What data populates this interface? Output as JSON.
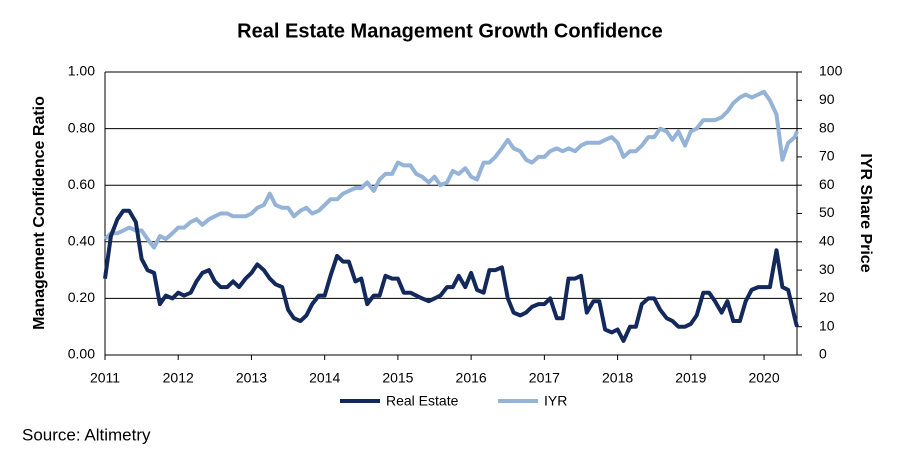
{
  "chart_data": {
    "type": "line",
    "title": "Real Estate Management Growth Confidence",
    "ylabel": "Management Confidence Ratio",
    "y2label": "IYR Share Price",
    "source": "Source: Altimetry",
    "legend": "bottom",
    "grid": true,
    "x": [
      2011.0,
      2011.08,
      2011.17,
      2011.25,
      2011.33,
      2011.42,
      2011.5,
      2011.58,
      2011.67,
      2011.75,
      2011.83,
      2011.92,
      2012.0,
      2012.08,
      2012.17,
      2012.25,
      2012.33,
      2012.42,
      2012.5,
      2012.58,
      2012.67,
      2012.75,
      2012.83,
      2012.92,
      2013.0,
      2013.08,
      2013.17,
      2013.25,
      2013.33,
      2013.42,
      2013.5,
      2013.58,
      2013.67,
      2013.75,
      2013.83,
      2013.92,
      2014.0,
      2014.08,
      2014.17,
      2014.25,
      2014.33,
      2014.42,
      2014.5,
      2014.58,
      2014.67,
      2014.75,
      2014.83,
      2014.92,
      2015.0,
      2015.08,
      2015.17,
      2015.25,
      2015.33,
      2015.42,
      2015.5,
      2015.58,
      2015.67,
      2015.75,
      2015.83,
      2015.92,
      2016.0,
      2016.08,
      2016.17,
      2016.25,
      2016.33,
      2016.42,
      2016.5,
      2016.58,
      2016.67,
      2016.75,
      2016.83,
      2016.92,
      2017.0,
      2017.08,
      2017.17,
      2017.25,
      2017.33,
      2017.42,
      2017.5,
      2017.58,
      2017.67,
      2017.75,
      2017.83,
      2017.92,
      2018.0,
      2018.08,
      2018.17,
      2018.25,
      2018.33,
      2018.42,
      2018.5,
      2018.58,
      2018.67,
      2018.75,
      2018.83,
      2018.92,
      2019.0,
      2019.08,
      2019.17,
      2019.25,
      2019.33,
      2019.42,
      2019.5,
      2019.58,
      2019.67,
      2019.75,
      2019.83,
      2019.92,
      2020.0,
      2020.08,
      2020.17,
      2020.25,
      2020.33,
      2020.42,
      2020.45
    ],
    "series": [
      {
        "name": "Real Estate",
        "color": "#13295b",
        "axis": "y",
        "values": [
          0.27,
          0.42,
          0.48,
          0.51,
          0.51,
          0.47,
          0.34,
          0.3,
          0.29,
          0.18,
          0.21,
          0.2,
          0.22,
          0.21,
          0.22,
          0.26,
          0.29,
          0.3,
          0.26,
          0.24,
          0.24,
          0.26,
          0.24,
          0.27,
          0.29,
          0.32,
          0.3,
          0.27,
          0.25,
          0.24,
          0.16,
          0.13,
          0.12,
          0.14,
          0.18,
          0.21,
          0.21,
          0.28,
          0.35,
          0.33,
          0.33,
          0.26,
          0.27,
          0.18,
          0.21,
          0.21,
          0.28,
          0.27,
          0.27,
          0.22,
          0.22,
          0.21,
          0.2,
          0.19,
          0.2,
          0.21,
          0.24,
          0.24,
          0.28,
          0.24,
          0.29,
          0.23,
          0.22,
          0.3,
          0.3,
          0.31,
          0.2,
          0.15,
          0.14,
          0.15,
          0.17,
          0.18,
          0.18,
          0.2,
          0.13,
          0.13,
          0.27,
          0.27,
          0.28,
          0.15,
          0.19,
          0.19,
          0.09,
          0.08,
          0.09,
          0.05,
          0.1,
          0.1,
          0.18,
          0.2,
          0.2,
          0.16,
          0.13,
          0.12,
          0.1,
          0.1,
          0.11,
          0.14,
          0.22,
          0.22,
          0.19,
          0.15,
          0.19,
          0.12,
          0.12,
          0.19,
          0.23,
          0.24,
          0.24,
          0.24,
          0.37,
          0.24,
          0.23,
          0.13,
          0.1
        ]
      },
      {
        "name": "IYR",
        "color": "#95b3d7",
        "axis": "y2",
        "values": [
          41,
          43,
          43,
          44,
          45,
          44,
          44,
          41,
          38,
          42,
          41,
          43,
          45,
          45,
          47,
          48,
          46,
          48,
          49,
          50,
          50,
          49,
          49,
          49,
          50,
          52,
          53,
          57,
          53,
          52,
          52,
          49,
          51,
          52,
          50,
          51,
          53,
          55,
          55,
          57,
          58,
          59,
          59,
          61,
          58,
          62,
          64,
          64,
          68,
          67,
          67,
          64,
          63,
          61,
          63,
          60,
          61,
          65,
          64,
          66,
          63,
          62,
          68,
          68,
          70,
          73,
          76,
          73,
          72,
          69,
          68,
          70,
          70,
          72,
          73,
          72,
          73,
          72,
          74,
          75,
          75,
          75,
          76,
          77,
          75,
          70,
          72,
          72,
          74,
          77,
          77,
          80,
          79,
          76,
          79,
          74,
          79,
          80,
          83,
          83,
          83,
          84,
          86,
          89,
          91,
          92,
          91,
          92,
          93,
          90,
          85,
          69,
          75,
          77,
          79
        ]
      }
    ],
    "xlim": [
      2011,
      2020.45
    ],
    "xticks": [
      2011,
      2012,
      2013,
      2014,
      2015,
      2016,
      2017,
      2018,
      2019,
      2020
    ],
    "ylim": [
      0,
      1
    ],
    "yticks": [
      {
        "value": 0,
        "label": "0.00"
      },
      {
        "value": 0.2,
        "label": "0.20"
      },
      {
        "value": 0.4,
        "label": "0.40"
      },
      {
        "value": 0.6,
        "label": "0.60"
      },
      {
        "value": 0.8,
        "label": "0.80"
      },
      {
        "value": 1,
        "label": "1.00"
      }
    ],
    "y2lim": [
      0,
      100
    ],
    "y2ticks": [
      0,
      10,
      20,
      30,
      40,
      50,
      60,
      70,
      80,
      90,
      100
    ]
  }
}
